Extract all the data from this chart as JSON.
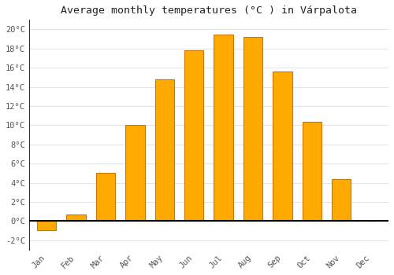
{
  "months": [
    "Jan",
    "Feb",
    "Mar",
    "Apr",
    "May",
    "Jun",
    "Jul",
    "Aug",
    "Sep",
    "Oct",
    "Nov",
    "Dec"
  ],
  "temperatures": [
    -1.0,
    0.7,
    5.0,
    10.0,
    14.8,
    17.8,
    19.5,
    19.2,
    15.6,
    10.4,
    4.4,
    0.0
  ],
  "bar_color": "#FFAA00",
  "bar_edge_color": "#CC7700",
  "title": "Average monthly temperatures (°C ) in Várpalota",
  "title_fontsize": 9.5,
  "ylim": [
    -3,
    21
  ],
  "yticks": [
    -2,
    0,
    2,
    4,
    6,
    8,
    10,
    12,
    14,
    16,
    18,
    20
  ],
  "background_color": "#ffffff",
  "grid_color": "#dddddd",
  "zero_line_color": "#000000",
  "tick_label_color": "#555555",
  "axis_label_fontsize": 7.5,
  "bar_width": 0.65
}
